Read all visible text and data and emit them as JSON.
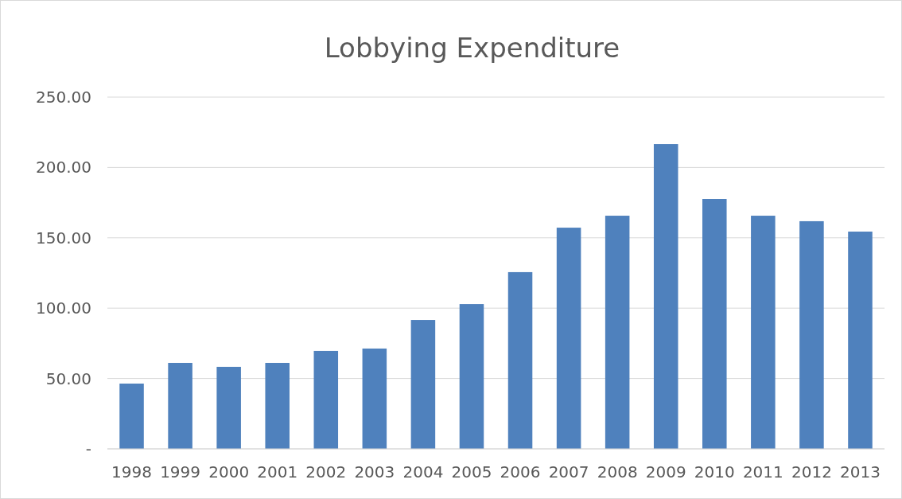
{
  "chart_data": {
    "type": "bar",
    "title": "Lobbying Expenditure",
    "categories": [
      "1998",
      "1999",
      "2000",
      "2001",
      "2002",
      "2003",
      "2004",
      "2005",
      "2006",
      "2007",
      "2008",
      "2009",
      "2010",
      "2011",
      "2012",
      "2013"
    ],
    "values": [
      46.4,
      61.1,
      58.3,
      61.1,
      69.6,
      71.3,
      91.6,
      102.9,
      125.6,
      157.2,
      165.7,
      216.6,
      177.6,
      165.7,
      161.8,
      154.4
    ],
    "color": "#4f81bd",
    "ylim": [
      0,
      250
    ],
    "yticks": [
      {
        "value": 0,
        "label": "-"
      },
      {
        "value": 50,
        "label": "50.00"
      },
      {
        "value": 100,
        "label": "100.00"
      },
      {
        "value": 150,
        "label": "150.00"
      },
      {
        "value": 200,
        "label": "200.00"
      },
      {
        "value": 250,
        "label": "250.00"
      }
    ],
    "grid": "y"
  }
}
